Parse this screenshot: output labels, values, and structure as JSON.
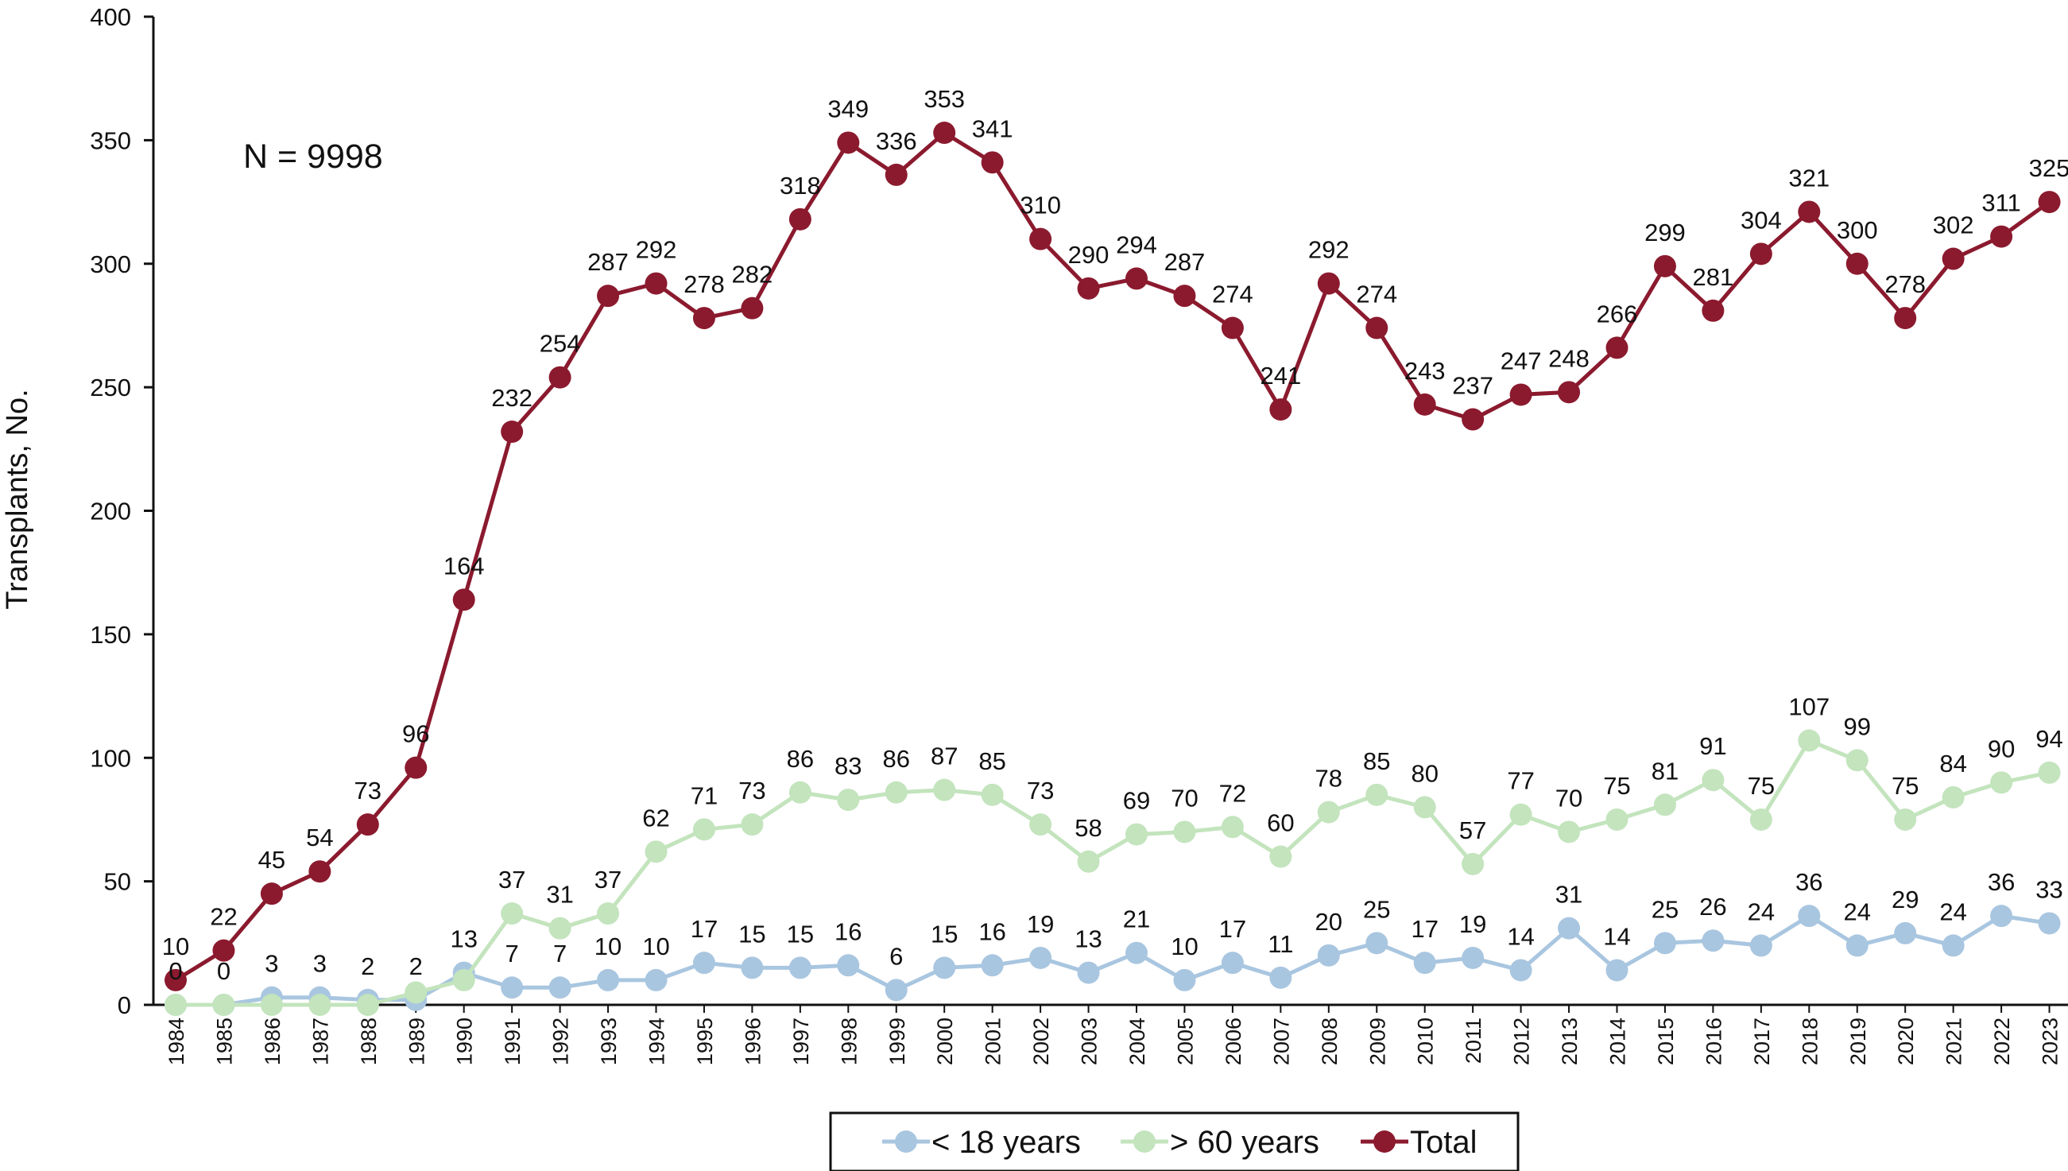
{
  "chart_data": {
    "type": "line",
    "title": "",
    "xlabel": "",
    "ylabel": "Transplants, No.",
    "ylim": [
      0,
      400
    ],
    "yticks": [
      0,
      50,
      100,
      150,
      200,
      250,
      300,
      350,
      400
    ],
    "grid": false,
    "legend_position": "bottom-center",
    "annotation": "N = 9998",
    "categories": [
      "1984",
      "1985",
      "1986",
      "1987",
      "1988",
      "1989",
      "1990",
      "1991",
      "1992",
      "1993",
      "1994",
      "1995",
      "1996",
      "1997",
      "1998",
      "1999",
      "2000",
      "2001",
      "2002",
      "2003",
      "2004",
      "2005",
      "2006",
      "2007",
      "2008",
      "2009",
      "2010",
      "2011",
      "2012",
      "2013",
      "2014",
      "2015",
      "2016",
      "2017",
      "2018",
      "2019",
      "2020",
      "2021",
      "2022",
      "2023"
    ],
    "series": [
      {
        "name": "< 18 years",
        "color": "#a9c6e0",
        "values": [
          0,
          0,
          3,
          3,
          2,
          2,
          13,
          7,
          7,
          10,
          10,
          17,
          15,
          15,
          16,
          6,
          15,
          16,
          19,
          13,
          21,
          10,
          17,
          11,
          20,
          25,
          17,
          19,
          14,
          31,
          14,
          25,
          26,
          24,
          36,
          24,
          29,
          24,
          36,
          33
        ],
        "labels": [
          null,
          null,
          "3",
          "3",
          "2",
          "2",
          "13",
          "7",
          "7",
          "10",
          "10",
          "17",
          "15",
          "15",
          "16",
          "6",
          "15",
          "16",
          "19",
          "13",
          "21",
          "10",
          "17",
          "11",
          "20",
          "25",
          "17",
          "19",
          "14",
          "31",
          "14",
          "25",
          "26",
          "24",
          "36",
          "24",
          "29",
          "24",
          "36",
          "33"
        ]
      },
      {
        "name": "> 60 years",
        "color": "#c3e4bd",
        "values": [
          0,
          0,
          0,
          0,
          0,
          5,
          10,
          37,
          31,
          37,
          62,
          71,
          73,
          86,
          83,
          86,
          87,
          85,
          73,
          58,
          69,
          70,
          72,
          60,
          78,
          85,
          80,
          57,
          77,
          70,
          75,
          81,
          91,
          75,
          107,
          99,
          75,
          84,
          90,
          94
        ],
        "labels": [
          "0",
          "0",
          null,
          null,
          null,
          null,
          null,
          "37",
          "31",
          "37",
          "62",
          "71",
          "73",
          "86",
          "83",
          "86",
          "87",
          "85",
          "73",
          "58",
          "69",
          "70",
          "72",
          "60",
          "78",
          "85",
          "80",
          "57",
          "77",
          "70",
          "75",
          "81",
          "91",
          "75",
          "107",
          "99",
          "75",
          "84",
          "90",
          "94"
        ]
      },
      {
        "name": "Total",
        "color": "#8b1a2e",
        "values": [
          10,
          22,
          45,
          54,
          73,
          96,
          164,
          232,
          254,
          287,
          292,
          278,
          282,
          318,
          349,
          336,
          353,
          341,
          310,
          290,
          294,
          287,
          274,
          241,
          292,
          274,
          243,
          237,
          247,
          248,
          266,
          299,
          281,
          304,
          321,
          300,
          278,
          302,
          311,
          325
        ],
        "labels": [
          "10",
          "22",
          "45",
          "54",
          "73",
          "96",
          "164",
          "232",
          "254",
          "287",
          "292",
          "278",
          "282",
          "318",
          "349",
          "336",
          "353",
          "341",
          "310",
          "290",
          "294",
          "287",
          "274",
          "241",
          "292",
          "274",
          "243",
          "237",
          "247",
          "248",
          "266",
          "299",
          "281",
          "304",
          "321",
          "300",
          "278",
          "302",
          "311",
          "325"
        ]
      }
    ]
  }
}
